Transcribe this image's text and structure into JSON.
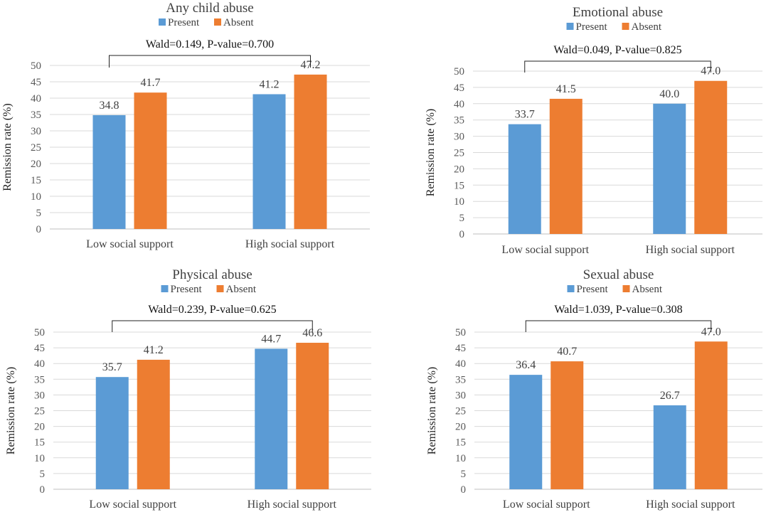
{
  "chart_data": [
    {
      "type": "bar",
      "title": "Any child abuse",
      "categories": [
        "Low social support",
        "High social support"
      ],
      "series": [
        {
          "name": "Present",
          "values": [
            34.8,
            41.2
          ]
        },
        {
          "name": "Absent",
          "values": [
            41.7,
            47.2
          ]
        }
      ],
      "data_labels": [
        [
          "34.8",
          "41.2"
        ],
        [
          "41.7",
          "47.2"
        ]
      ],
      "annotation": "Wald=0.149, P-value=0.700",
      "ylabel": "Remission rate (%)",
      "ylim": [
        0,
        50
      ],
      "yticks": [
        "0",
        "5",
        "10",
        "15",
        "20",
        "25",
        "30",
        "35",
        "40",
        "45",
        "50"
      ],
      "legend": [
        "Present",
        "Absent"
      ],
      "legend_position": "top"
    },
    {
      "type": "bar",
      "title": "Emotional abuse",
      "categories": [
        "Low social support",
        "High social support"
      ],
      "series": [
        {
          "name": "Present",
          "values": [
            33.7,
            40.0
          ]
        },
        {
          "name": "Absent",
          "values": [
            41.5,
            47.0
          ]
        }
      ],
      "data_labels": [
        [
          "33.7",
          "40.0"
        ],
        [
          "41.5",
          "47.0"
        ]
      ],
      "annotation": "Wald=0.049, P-value=0.825",
      "ylabel": "Remission rate (%)",
      "ylim": [
        0,
        50
      ],
      "yticks": [
        "0",
        "5",
        "10",
        "15",
        "20",
        "25",
        "30",
        "35",
        "40",
        "45",
        "50"
      ],
      "legend": [
        "Present",
        "Absent"
      ],
      "legend_position": "top"
    },
    {
      "type": "bar",
      "title": "Physical abuse",
      "categories": [
        "Low social support",
        "High social support"
      ],
      "series": [
        {
          "name": "Present",
          "values": [
            35.7,
            44.7
          ]
        },
        {
          "name": "Absent",
          "values": [
            41.2,
            46.6
          ]
        }
      ],
      "data_labels": [
        [
          "35.7",
          "44.7"
        ],
        [
          "41.2",
          "46.6"
        ]
      ],
      "annotation": "Wald=0.239, P-value=0.625",
      "ylabel": "Remission rate (%)",
      "ylim": [
        0,
        50
      ],
      "yticks": [
        "0",
        "5",
        "10",
        "15",
        "20",
        "25",
        "30",
        "35",
        "40",
        "45",
        "50"
      ],
      "legend": [
        "Present",
        "Absent"
      ],
      "legend_position": "top"
    },
    {
      "type": "bar",
      "title": "Sexual abuse",
      "categories": [
        "Low social support",
        "High social support"
      ],
      "series": [
        {
          "name": "Present",
          "values": [
            36.4,
            26.7
          ]
        },
        {
          "name": "Absent",
          "values": [
            40.7,
            47.0
          ]
        }
      ],
      "data_labels": [
        [
          "36.4",
          "26.7"
        ],
        [
          "40.7",
          "47.0"
        ]
      ],
      "annotation": "Wald=1.039, P-value=0.308",
      "ylabel": "Remission rate (%)",
      "ylim": [
        0,
        50
      ],
      "yticks": [
        "0",
        "5",
        "10",
        "15",
        "20",
        "25",
        "30",
        "35",
        "40",
        "45",
        "50"
      ],
      "legend": [
        "Present",
        "Absent"
      ],
      "legend_position": "top"
    }
  ],
  "colors": {
    "present": "#5b9bd5",
    "absent": "#ed7d31",
    "grid": "#d9d9d9"
  }
}
